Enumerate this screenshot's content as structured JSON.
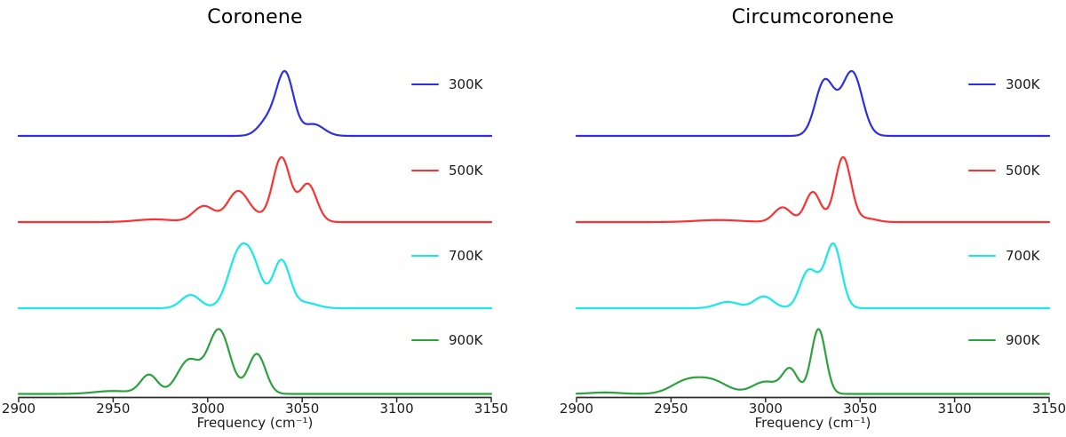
{
  "figure": {
    "background": "#ffffff",
    "text_color": "#1c1c1c",
    "axis_color": "#2b2b2b"
  },
  "chart_data": [
    {
      "type": "line",
      "title": "Coronene",
      "xlabel": "Frequency (cm⁻¹)",
      "x_range": [
        2900,
        3150
      ],
      "x_ticks": [
        2900,
        2950,
        3000,
        3050,
        3100,
        3150
      ],
      "y_axis": "none shown (traces offset-stacked, each normalized)",
      "legend_position": "right of each trace",
      "series": [
        {
          "name": "300K",
          "color": "#2e2ee6",
          "profile": "sum-of-gaussians, rel_height normalized to trace max",
          "peaks": [
            {
              "center": 3032,
              "rel_height": 0.24,
              "sigma": 5.0
            },
            {
              "center": 3041,
              "rel_height": 0.95,
              "sigma": 4.5
            },
            {
              "center": 3056,
              "rel_height": 0.18,
              "sigma": 5.5
            }
          ]
        },
        {
          "name": "500K",
          "color": "#fa3232",
          "profile": "sum-of-gaussians, rel_height normalized to trace max",
          "peaks": [
            {
              "center": 2972,
              "rel_height": 0.04,
              "sigma": 10.0
            },
            {
              "center": 2998,
              "rel_height": 0.24,
              "sigma": 5.5
            },
            {
              "center": 3016,
              "rel_height": 0.46,
              "sigma": 5.5
            },
            {
              "center": 3026,
              "rel_height": 0.06,
              "sigma": 5.0
            },
            {
              "center": 3039,
              "rel_height": 0.97,
              "sigma": 4.6
            },
            {
              "center": 3053,
              "rel_height": 0.57,
              "sigma": 4.6
            }
          ]
        },
        {
          "name": "700K",
          "color": "#17e8e8",
          "profile": "sum-of-gaussians, rel_height normalized to trace max",
          "peaks": [
            {
              "center": 2991,
              "rel_height": 0.2,
              "sigma": 5.0
            },
            {
              "center": 3016,
              "rel_height": 0.75,
              "sigma": 5.5
            },
            {
              "center": 3024,
              "rel_height": 0.55,
              "sigma": 5.0
            },
            {
              "center": 3039,
              "rel_height": 0.72,
              "sigma": 4.5
            },
            {
              "center": 3052,
              "rel_height": 0.08,
              "sigma": 6.0
            }
          ]
        },
        {
          "name": "900K",
          "color": "#2ca23e",
          "profile": "sum-of-gaussians, rel_height normalized to trace max",
          "peaks": [
            {
              "center": 2950,
              "rel_height": 0.04,
              "sigma": 10.0
            },
            {
              "center": 2969,
              "rel_height": 0.26,
              "sigma": 4.5
            },
            {
              "center": 2990,
              "rel_height": 0.46,
              "sigma": 6.0
            },
            {
              "center": 3006,
              "rel_height": 0.88,
              "sigma": 5.8
            },
            {
              "center": 3026,
              "rel_height": 0.55,
              "sigma": 4.6
            }
          ]
        }
      ]
    },
    {
      "type": "line",
      "title": "Circumcoronene",
      "xlabel": "Frequency (cm⁻¹)",
      "x_range": [
        2900,
        3150
      ],
      "x_ticks": [
        2900,
        2950,
        3000,
        3050,
        3100,
        3150
      ],
      "y_axis": "none shown (traces offset-stacked, each normalized)",
      "legend_position": "right of each trace",
      "series": [
        {
          "name": "300K",
          "color": "#2e2ee6",
          "profile": "sum-of-gaussians, rel_height normalized to trace max",
          "peaks": [
            {
              "center": 3031,
              "rel_height": 0.72,
              "sigma": 4.8
            },
            {
              "center": 3038,
              "rel_height": 0.12,
              "sigma": 4.5
            },
            {
              "center": 3046,
              "rel_height": 0.85,
              "sigma": 5.2
            }
          ]
        },
        {
          "name": "500K",
          "color": "#fa3232",
          "profile": "sum-of-gaussians, rel_height normalized to trace max",
          "peaks": [
            {
              "center": 2975,
              "rel_height": 0.03,
              "sigma": 12.0
            },
            {
              "center": 3009,
              "rel_height": 0.22,
              "sigma": 4.5
            },
            {
              "center": 3025,
              "rel_height": 0.45,
              "sigma": 4.0
            },
            {
              "center": 3041,
              "rel_height": 0.97,
              "sigma": 4.2
            },
            {
              "center": 3054,
              "rel_height": 0.05,
              "sigma": 5.0
            }
          ]
        },
        {
          "name": "700K",
          "color": "#17e8e8",
          "profile": "sum-of-gaussians, rel_height normalized to trace max",
          "peaks": [
            {
              "center": 2980,
              "rel_height": 0.08,
              "sigma": 6.0
            },
            {
              "center": 2999,
              "rel_height": 0.15,
              "sigma": 5.0
            },
            {
              "center": 3022,
              "rel_height": 0.42,
              "sigma": 4.2
            },
            {
              "center": 3028,
              "rel_height": 0.18,
              "sigma": 4.0
            },
            {
              "center": 3036,
              "rel_height": 0.8,
              "sigma": 4.2
            }
          ]
        },
        {
          "name": "900K",
          "color": "#2ca23e",
          "profile": "sum-of-gaussians, rel_height normalized to trace max",
          "peaks": [
            {
              "center": 2915,
              "rel_height": 0.02,
              "sigma": 8.0
            },
            {
              "center": 2958,
              "rel_height": 0.17,
              "sigma": 8.0
            },
            {
              "center": 2972,
              "rel_height": 0.17,
              "sigma": 8.0
            },
            {
              "center": 3000,
              "rel_height": 0.17,
              "sigma": 7.0
            },
            {
              "center": 3013,
              "rel_height": 0.33,
              "sigma": 4.0
            },
            {
              "center": 3028,
              "rel_height": 0.9,
              "sigma": 3.8
            }
          ]
        }
      ]
    }
  ]
}
